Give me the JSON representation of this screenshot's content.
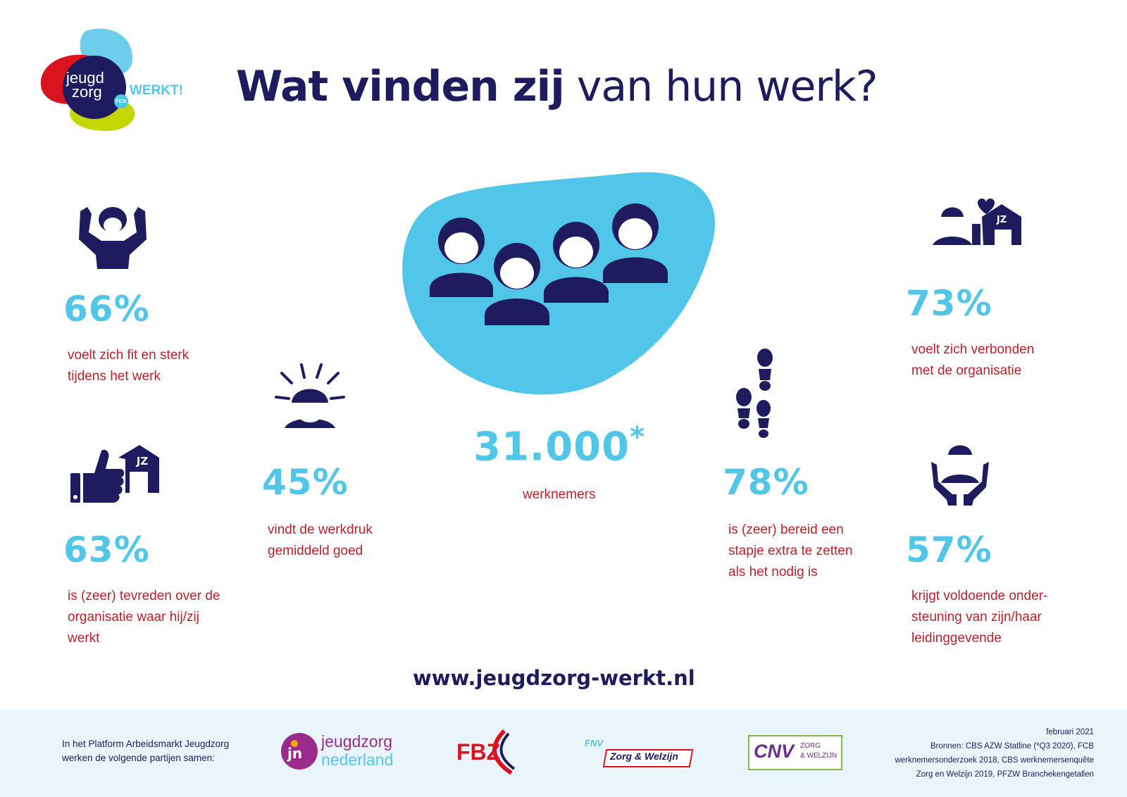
{
  "logo": {
    "line1": "jeugd",
    "line2": "zorg",
    "badge": "FCB",
    "tagline": "WERKT!"
  },
  "title": {
    "bold": "Wat vinden zij",
    "light": "van hun werk?"
  },
  "colors": {
    "navy": "#1e1b5e",
    "cyan": "#52c6e8",
    "red": "#b5232c",
    "footer_bg": "#eaf5fb"
  },
  "center": {
    "number": "31.000",
    "asterisk": "*",
    "label": "werknemers"
  },
  "stats": [
    {
      "icon": "strong-person-icon",
      "percent": "66%",
      "lines": [
        "voelt zich fit en sterk",
        "tijdens het werk"
      ]
    },
    {
      "icon": "thumbs-up-organisation-icon",
      "percent": "63%",
      "lines": [
        "is (zeer) tevreden over de",
        "organisatie waar hij/zij",
        "werkt"
      ]
    },
    {
      "icon": "sunrise-person-icon",
      "percent": "45%",
      "lines": [
        "vindt de werkdruk",
        "gemiddeld goed"
      ]
    },
    {
      "icon": "footsteps-icon",
      "percent": "78%",
      "lines": [
        "is (zeer) bereid een",
        "stapje extra te zetten",
        "als het nodig is"
      ]
    },
    {
      "icon": "person-heart-organisation-icon",
      "percent": "73%",
      "lines": [
        "voelt zich verbonden",
        "met de organisatie"
      ]
    },
    {
      "icon": "supporting-hands-icon",
      "percent": "57%",
      "lines": [
        "krijgt voldoende onder-",
        "steuning van zijn/haar",
        "leidinggevende"
      ]
    }
  ],
  "url": "www.jeugdzorg-werkt.nl",
  "footer": {
    "intro": [
      "In het Platform Arbeidsmarkt Jeugdzorg",
      "werken de volgende partijen samen:"
    ],
    "partners": {
      "jn": {
        "mark": "jn",
        "line1": "jeugdzorg",
        "line2": "nederland"
      },
      "fbz": {
        "text": "FBZ"
      },
      "fnv": {
        "mark": "FNV",
        "text": "Zorg & Welzijn"
      },
      "cnv": {
        "mark": "CNV",
        "line1": "ZORG",
        "line2": "& WELZIJN"
      }
    },
    "sources": [
      "februari 2021",
      "Bronnen: CBS AZW Statline (*Q3  2020), FCB",
      "werknemersonderzoek 2018, CBS werknemersenquête",
      "Zorg en Welzijn 2019, PFZW Branchekengetallen"
    ]
  }
}
